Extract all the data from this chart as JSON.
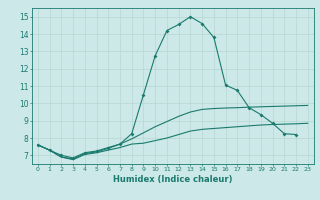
{
  "xlabel": "Humidex (Indice chaleur)",
  "bg_color": "#cce8e8",
  "grid_color": "#b8d8d0",
  "line_color": "#1a7a6e",
  "xlim": [
    -0.5,
    23.5
  ],
  "ylim": [
    6.5,
    15.5
  ],
  "yticks": [
    7,
    8,
    9,
    10,
    11,
    12,
    13,
    14,
    15
  ],
  "xticks": [
    0,
    1,
    2,
    3,
    4,
    5,
    6,
    7,
    8,
    9,
    10,
    11,
    12,
    13,
    14,
    15,
    16,
    17,
    18,
    19,
    20,
    21,
    22,
    23
  ],
  "series": [
    {
      "x": [
        0,
        1,
        2,
        3,
        4,
        5,
        6,
        7,
        8,
        9,
        10,
        11,
        12,
        13,
        14,
        15,
        16,
        17,
        18,
        19,
        20,
        21,
        22,
        23
      ],
      "y": [
        7.6,
        7.3,
        6.9,
        6.75,
        7.05,
        7.15,
        7.3,
        7.45,
        7.65,
        7.7,
        7.85,
        8.0,
        8.2,
        8.4,
        8.5,
        8.55,
        8.6,
        8.65,
        8.7,
        8.75,
        8.78,
        8.8,
        8.82,
        8.85
      ],
      "marker": false
    },
    {
      "x": [
        0,
        1,
        2,
        3,
        4,
        5,
        6,
        7,
        8,
        9,
        10,
        11,
        12,
        13,
        14,
        15,
        16,
        17,
        18,
        19,
        20,
        21,
        22,
        23
      ],
      "y": [
        7.6,
        7.3,
        6.9,
        6.8,
        7.1,
        7.2,
        7.4,
        7.65,
        7.95,
        8.3,
        8.65,
        8.95,
        9.25,
        9.5,
        9.65,
        9.7,
        9.73,
        9.75,
        9.78,
        9.8,
        9.82,
        9.84,
        9.86,
        9.88
      ],
      "marker": false
    },
    {
      "x": [
        0,
        1,
        2,
        3,
        4,
        5,
        6,
        7,
        8,
        9,
        10,
        11,
        12,
        13,
        14,
        15,
        16,
        17,
        18,
        19,
        20,
        21,
        22,
        23
      ],
      "y": [
        7.6,
        7.3,
        7.0,
        6.85,
        7.15,
        7.25,
        7.45,
        7.65,
        8.25,
        10.5,
        12.75,
        14.2,
        14.55,
        15.0,
        14.6,
        13.8,
        11.05,
        10.75,
        9.75,
        9.35,
        8.85,
        8.25,
        8.2,
        null
      ],
      "marker": true
    }
  ]
}
